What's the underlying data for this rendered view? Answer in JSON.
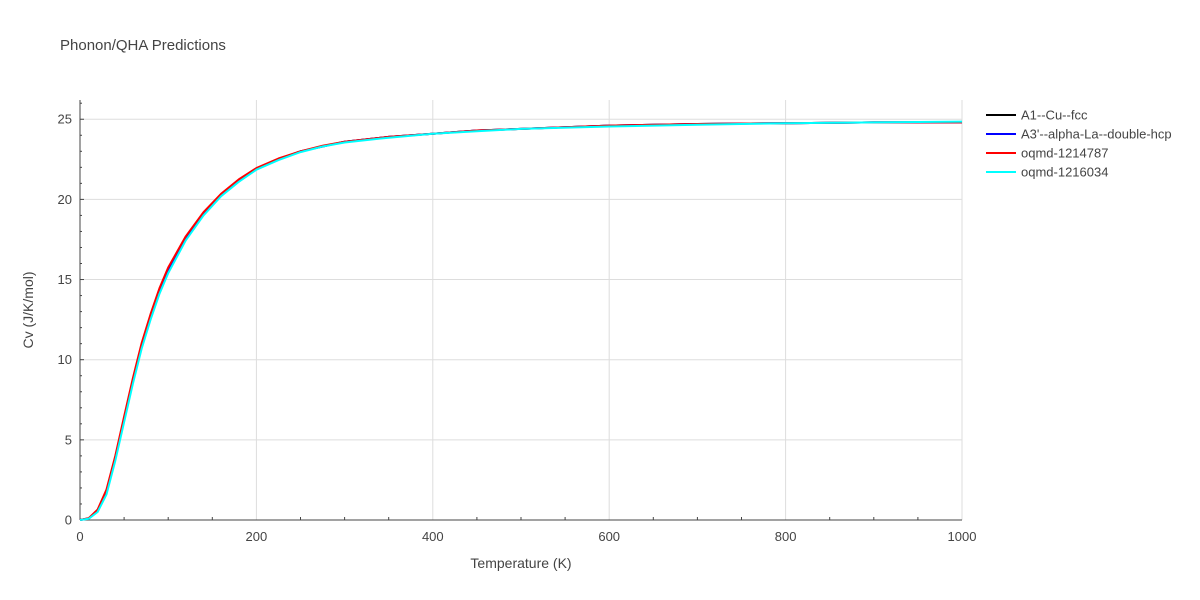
{
  "chart_data": {
    "type": "line",
    "title": "Phonon/QHA Predictions",
    "xlabel": "Temperature (K)",
    "ylabel": "Cv (J/K/mol)",
    "xlim": [
      0,
      1000
    ],
    "ylim": [
      0,
      26.2
    ],
    "xticks": [
      0,
      200,
      400,
      600,
      800,
      1000
    ],
    "yticks": [
      0,
      5,
      10,
      15,
      20,
      25
    ],
    "grid": true,
    "legend": "top-right",
    "series": [
      {
        "name": "A1--Cu--fcc",
        "color": "#000000",
        "x": [
          0,
          10,
          20,
          30,
          40,
          50,
          60,
          70,
          80,
          90,
          100,
          120,
          140,
          160,
          180,
          200,
          225,
          250,
          275,
          300,
          350,
          400,
          450,
          500,
          600,
          700,
          800,
          900,
          1000
        ],
        "y": [
          0,
          0.1,
          0.6,
          1.8,
          3.9,
          6.3,
          8.7,
          10.9,
          12.7,
          14.3,
          15.6,
          17.6,
          19.1,
          20.3,
          21.2,
          21.9,
          22.5,
          23.0,
          23.3,
          23.6,
          23.9,
          24.1,
          24.3,
          24.4,
          24.6,
          24.7,
          24.75,
          24.8,
          24.8
        ]
      },
      {
        "name": "A3'--alpha-La--double-hcp",
        "color": "#0000ff",
        "x": [
          0,
          10,
          20,
          30,
          40,
          50,
          60,
          70,
          80,
          90,
          100,
          120,
          140,
          160,
          180,
          200,
          225,
          250,
          275,
          300,
          350,
          400,
          450,
          500,
          600,
          700,
          800,
          900,
          1000
        ],
        "y": [
          0,
          0.1,
          0.6,
          1.8,
          3.9,
          6.3,
          8.7,
          10.9,
          12.7,
          14.3,
          15.6,
          17.6,
          19.1,
          20.3,
          21.2,
          21.9,
          22.5,
          23.0,
          23.3,
          23.6,
          23.9,
          24.1,
          24.3,
          24.4,
          24.6,
          24.7,
          24.75,
          24.8,
          24.8
        ]
      },
      {
        "name": "oqmd-1214787",
        "color": "#ff0000",
        "x": [
          0,
          10,
          20,
          30,
          40,
          50,
          60,
          70,
          80,
          90,
          100,
          120,
          140,
          160,
          180,
          200,
          225,
          250,
          275,
          300,
          350,
          400,
          450,
          500,
          600,
          700,
          800,
          900,
          1000
        ],
        "y": [
          0,
          0.12,
          0.65,
          1.9,
          4.0,
          6.45,
          8.85,
          11.05,
          12.85,
          14.45,
          15.75,
          17.7,
          19.2,
          20.35,
          21.25,
          21.95,
          22.55,
          23.0,
          23.35,
          23.6,
          23.9,
          24.1,
          24.3,
          24.4,
          24.6,
          24.7,
          24.75,
          24.8,
          24.8
        ]
      },
      {
        "name": "oqmd-1216034",
        "color": "#00ffff",
        "x": [
          0,
          10,
          20,
          30,
          40,
          50,
          60,
          70,
          80,
          90,
          100,
          120,
          140,
          160,
          180,
          200,
          225,
          250,
          275,
          300,
          350,
          400,
          450,
          500,
          600,
          700,
          800,
          900,
          1000
        ],
        "y": [
          0,
          0.08,
          0.5,
          1.6,
          3.7,
          6.1,
          8.5,
          10.7,
          12.5,
          14.1,
          15.4,
          17.45,
          19.0,
          20.2,
          21.1,
          21.85,
          22.45,
          22.95,
          23.3,
          23.55,
          23.85,
          24.1,
          24.25,
          24.4,
          24.55,
          24.65,
          24.75,
          24.8,
          24.85
        ]
      }
    ]
  }
}
